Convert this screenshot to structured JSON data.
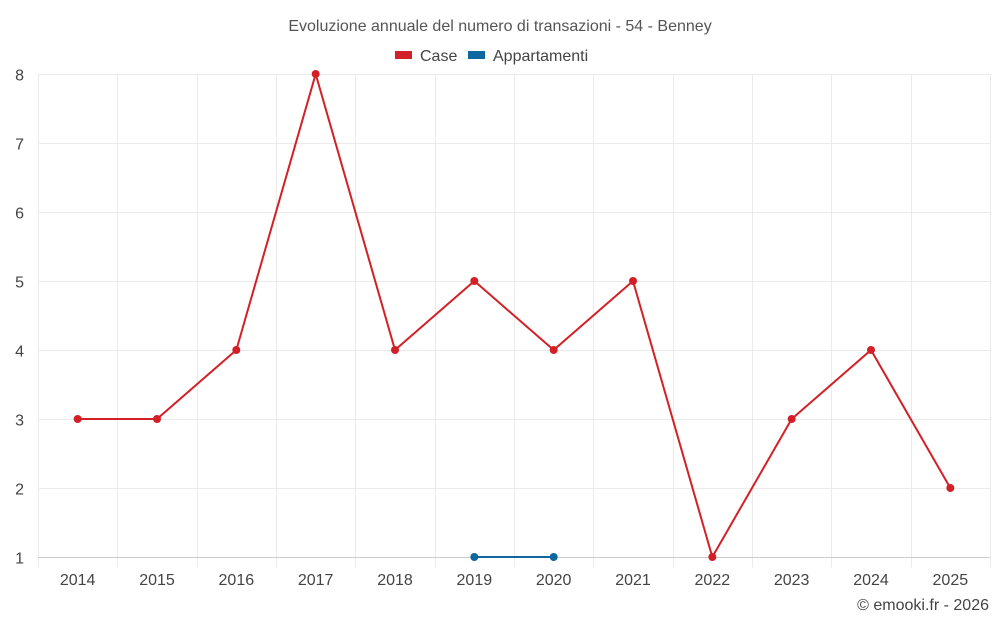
{
  "chart_data": {
    "type": "line",
    "title": "Evoluzione annuale del numero di transazioni - 54 - Benney",
    "categories": [
      "2014",
      "2015",
      "2016",
      "2017",
      "2018",
      "2019",
      "2020",
      "2021",
      "2022",
      "2023",
      "2024",
      "2025"
    ],
    "series": [
      {
        "name": "Case",
        "color": "#d32027",
        "values": [
          3,
          3,
          4,
          8,
          4,
          5,
          4,
          5,
          1,
          3,
          4,
          2
        ]
      },
      {
        "name": "Appartamenti",
        "color": "#0f67a0",
        "values": [
          null,
          null,
          null,
          null,
          null,
          1,
          1,
          null,
          null,
          null,
          null,
          null
        ]
      }
    ],
    "y_ticks": [
      1,
      2,
      3,
      4,
      5,
      6,
      7,
      8
    ],
    "ylim": [
      1,
      8
    ],
    "xlabel": "",
    "ylabel": "",
    "grid": true,
    "legend_position": "top-center"
  },
  "credit": "© emooki.fr - 2026"
}
